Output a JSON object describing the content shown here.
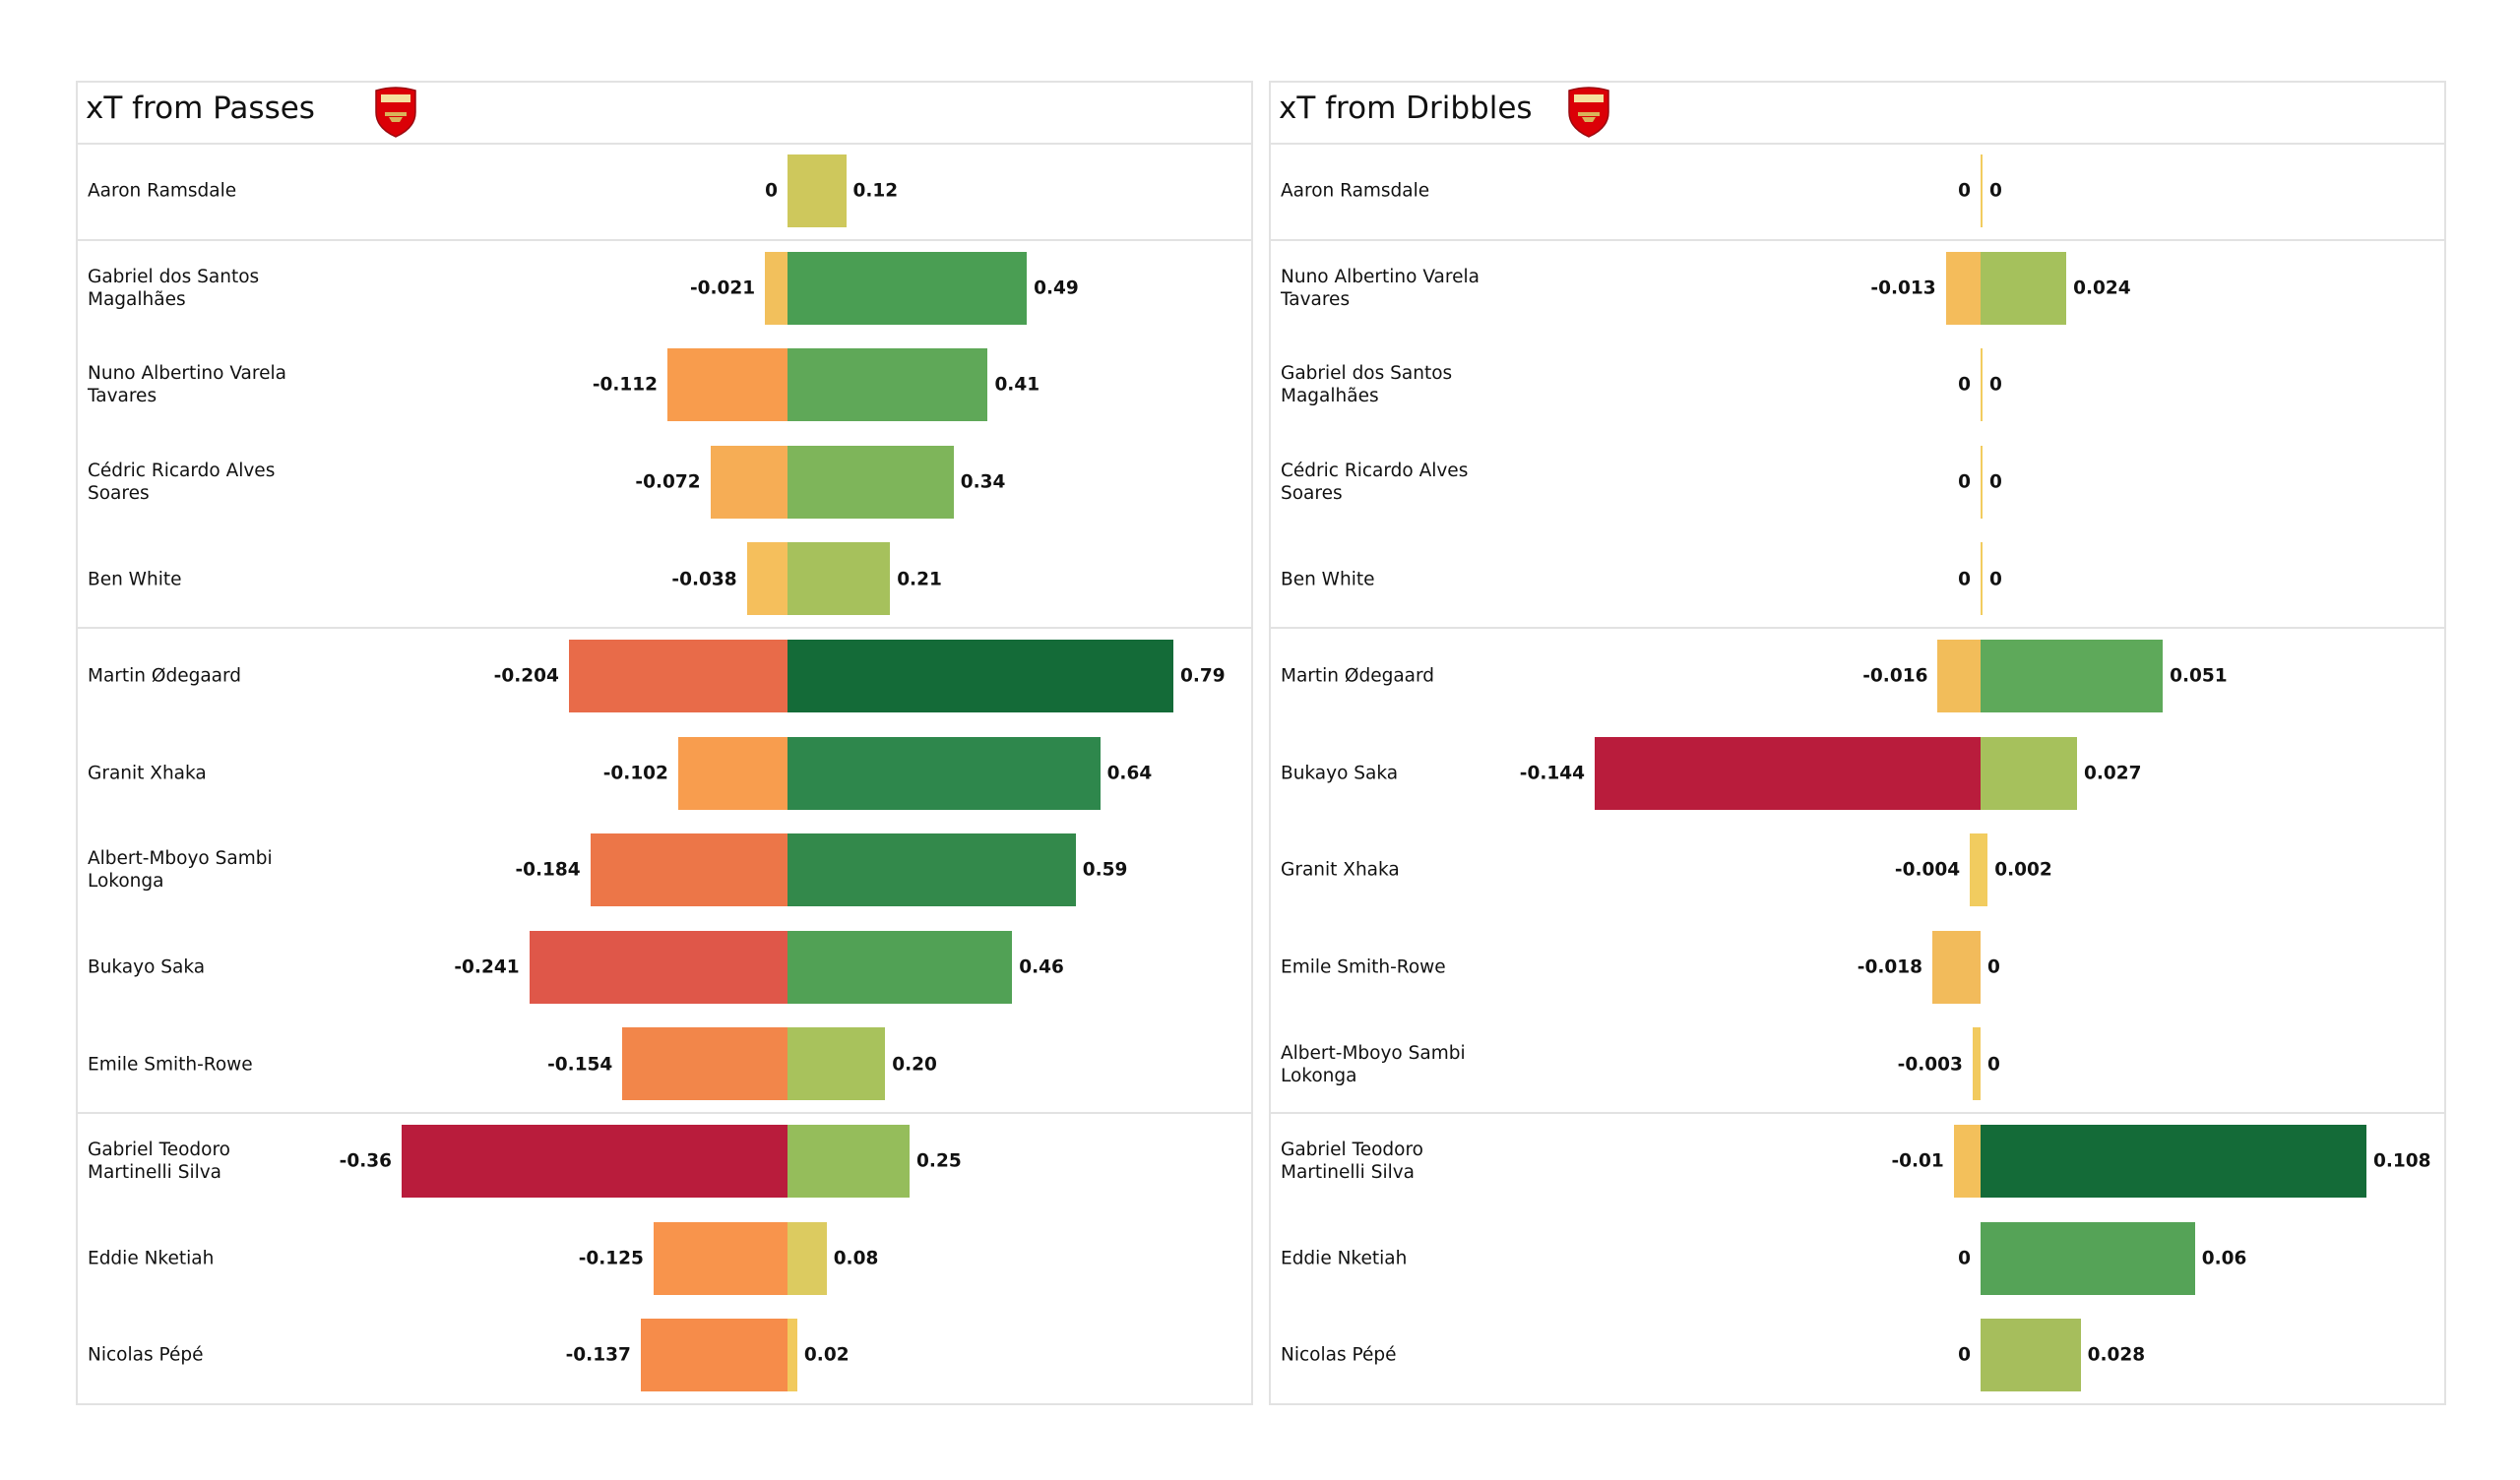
{
  "chart_data": [
    {
      "type": "bar",
      "title": "xT from Passes",
      "logo_text": "Arsenal",
      "groups": [
        [
          {
            "name": "Aaron Ramsdale",
            "neg": 0,
            "pos": 0.12,
            "neg_label": "0",
            "pos_label": "0.12",
            "neg_color": "#f2ca5e",
            "pos_color": "#cec85c"
          }
        ],
        [
          {
            "name": "Gabriel dos Santos Magalhães",
            "neg": -0.021,
            "pos": 0.49,
            "neg_label": "-0.021",
            "pos_label": "0.49",
            "neg_color": "#f2c05c",
            "pos_color": "#4a9e53"
          },
          {
            "name": "Nuno Albertino Varela Tavares",
            "neg": -0.112,
            "pos": 0.41,
            "neg_label": "-0.112",
            "pos_label": "0.41",
            "neg_color": "#f89c4d",
            "pos_color": "#5fa858"
          },
          {
            "name": "Cédric Ricardo Alves Soares",
            "neg": -0.072,
            "pos": 0.34,
            "neg_label": "-0.072",
            "pos_label": "0.34",
            "neg_color": "#f6ad55",
            "pos_color": "#7eb55a"
          },
          {
            "name": "Ben White",
            "neg": -0.038,
            "pos": 0.21,
            "neg_label": "-0.038",
            "pos_label": "0.21",
            "neg_color": "#f5bf5c",
            "pos_color": "#a6c15c"
          }
        ],
        [
          {
            "name": "Martin Ødegaard",
            "neg": -0.204,
            "pos": 0.79,
            "neg_label": "-0.204",
            "pos_label": "0.79",
            "neg_color": "#e86b49",
            "pos_color": "#146b38"
          },
          {
            "name": "Granit Xhaka",
            "neg": -0.102,
            "pos": 0.64,
            "neg_label": "-0.102",
            "pos_label": "0.64",
            "neg_color": "#f89d4e",
            "pos_color": "#2e874c"
          },
          {
            "name": "Albert-Mboyo Sambi Lokonga",
            "neg": -0.184,
            "pos": 0.59,
            "neg_label": "-0.184",
            "pos_label": "0.59",
            "neg_color": "#ec7648",
            "pos_color": "#33894b"
          },
          {
            "name": "Bukayo Saka",
            "neg": -0.241,
            "pos": 0.46,
            "neg_label": "-0.241",
            "pos_label": "0.46",
            "neg_color": "#df5749",
            "pos_color": "#51a155"
          },
          {
            "name": "Emile Smith-Rowe",
            "neg": -0.154,
            "pos": 0.2,
            "neg_label": "-0.154",
            "pos_label": "0.20",
            "neg_color": "#f2864a",
            "pos_color": "#a8c25c"
          }
        ],
        [
          {
            "name": "Gabriel Teodoro Martinelli Silva",
            "neg": -0.36,
            "pos": 0.25,
            "neg_label": "-0.36",
            "pos_label": "0.25",
            "neg_color": "#b91c3c",
            "pos_color": "#95bd5b"
          },
          {
            "name": "Eddie Nketiah",
            "neg": -0.125,
            "pos": 0.08,
            "neg_label": "-0.125",
            "pos_label": "0.08",
            "neg_color": "#f8944c",
            "pos_color": "#dccb60"
          },
          {
            "name": "Nicolas Pépé",
            "neg": -0.137,
            "pos": 0.02,
            "neg_label": "-0.137",
            "pos_label": "0.02",
            "neg_color": "#f68c4a",
            "pos_color": "#f1ca5e"
          }
        ]
      ]
    },
    {
      "type": "bar",
      "title": "xT from Dribbles",
      "logo_text": "Arsenal",
      "groups": [
        [
          {
            "name": "Aaron Ramsdale",
            "neg": 0,
            "pos": 0,
            "neg_label": "0",
            "pos_label": "0",
            "neg_color": "#f2cc5f",
            "pos_color": "#f2cc5f"
          }
        ],
        [
          {
            "name": "Nuno Albertino Varela Tavares",
            "neg": -0.013,
            "pos": 0.024,
            "neg_label": "-0.013",
            "pos_label": "0.024",
            "neg_color": "#f4bc5b",
            "pos_color": "#a5c15c"
          },
          {
            "name": "Gabriel dos Santos Magalhães",
            "neg": 0,
            "pos": 0,
            "neg_label": "0",
            "pos_label": "0",
            "neg_color": "#f2cc5f",
            "pos_color": "#f2cc5f"
          },
          {
            "name": "Cédric Ricardo Alves Soares",
            "neg": 0,
            "pos": 0,
            "neg_label": "0",
            "pos_label": "0",
            "neg_color": "#f2cc5f",
            "pos_color": "#f2cc5f"
          },
          {
            "name": "Ben White",
            "neg": 0,
            "pos": 0,
            "neg_label": "0",
            "pos_label": "0",
            "neg_color": "#f2cc5f",
            "pos_color": "#f2cc5f"
          }
        ],
        [
          {
            "name": "Martin Ødegaard",
            "neg": -0.016,
            "pos": 0.051,
            "neg_label": "-0.016",
            "pos_label": "0.051",
            "neg_color": "#f2bd5a",
            "pos_color": "#5ea95a"
          },
          {
            "name": "Bukayo Saka",
            "neg": -0.144,
            "pos": 0.027,
            "neg_label": "-0.144",
            "pos_label": "0.027",
            "neg_color": "#b91c3c",
            "pos_color": "#a6c15c"
          },
          {
            "name": "Granit Xhaka",
            "neg": -0.004,
            "pos": 0.002,
            "neg_label": "-0.004",
            "pos_label": "0.002",
            "neg_color": "#f1cc5f",
            "pos_color": "#f2cc5f"
          },
          {
            "name": "Emile Smith-Rowe",
            "neg": -0.018,
            "pos": 0,
            "neg_label": "-0.018",
            "pos_label": "0",
            "neg_color": "#f2bb5b",
            "pos_color": "#f2cc5f"
          },
          {
            "name": "Albert-Mboyo Sambi Lokonga",
            "neg": -0.003,
            "pos": 0,
            "neg_label": "-0.003",
            "pos_label": "0",
            "neg_color": "#f2ca5e",
            "pos_color": "#f2cc5f"
          }
        ],
        [
          {
            "name": "Gabriel Teodoro Martinelli Silva",
            "neg": -0.01,
            "pos": 0.108,
            "neg_label": "-0.01",
            "pos_label": "0.108",
            "neg_color": "#f3c05b",
            "pos_color": "#146b38"
          },
          {
            "name": "Eddie Nketiah",
            "neg": 0,
            "pos": 0.06,
            "neg_label": "0",
            "pos_label": "0.06",
            "neg_color": "#f2cc5f",
            "pos_color": "#55a357"
          },
          {
            "name": "Nicolas Pépé",
            "neg": 0,
            "pos": 0.028,
            "neg_label": "0",
            "pos_label": "0.028",
            "neg_color": "#f2cc5f",
            "pos_color": "#a6be5c"
          }
        ]
      ]
    }
  ]
}
